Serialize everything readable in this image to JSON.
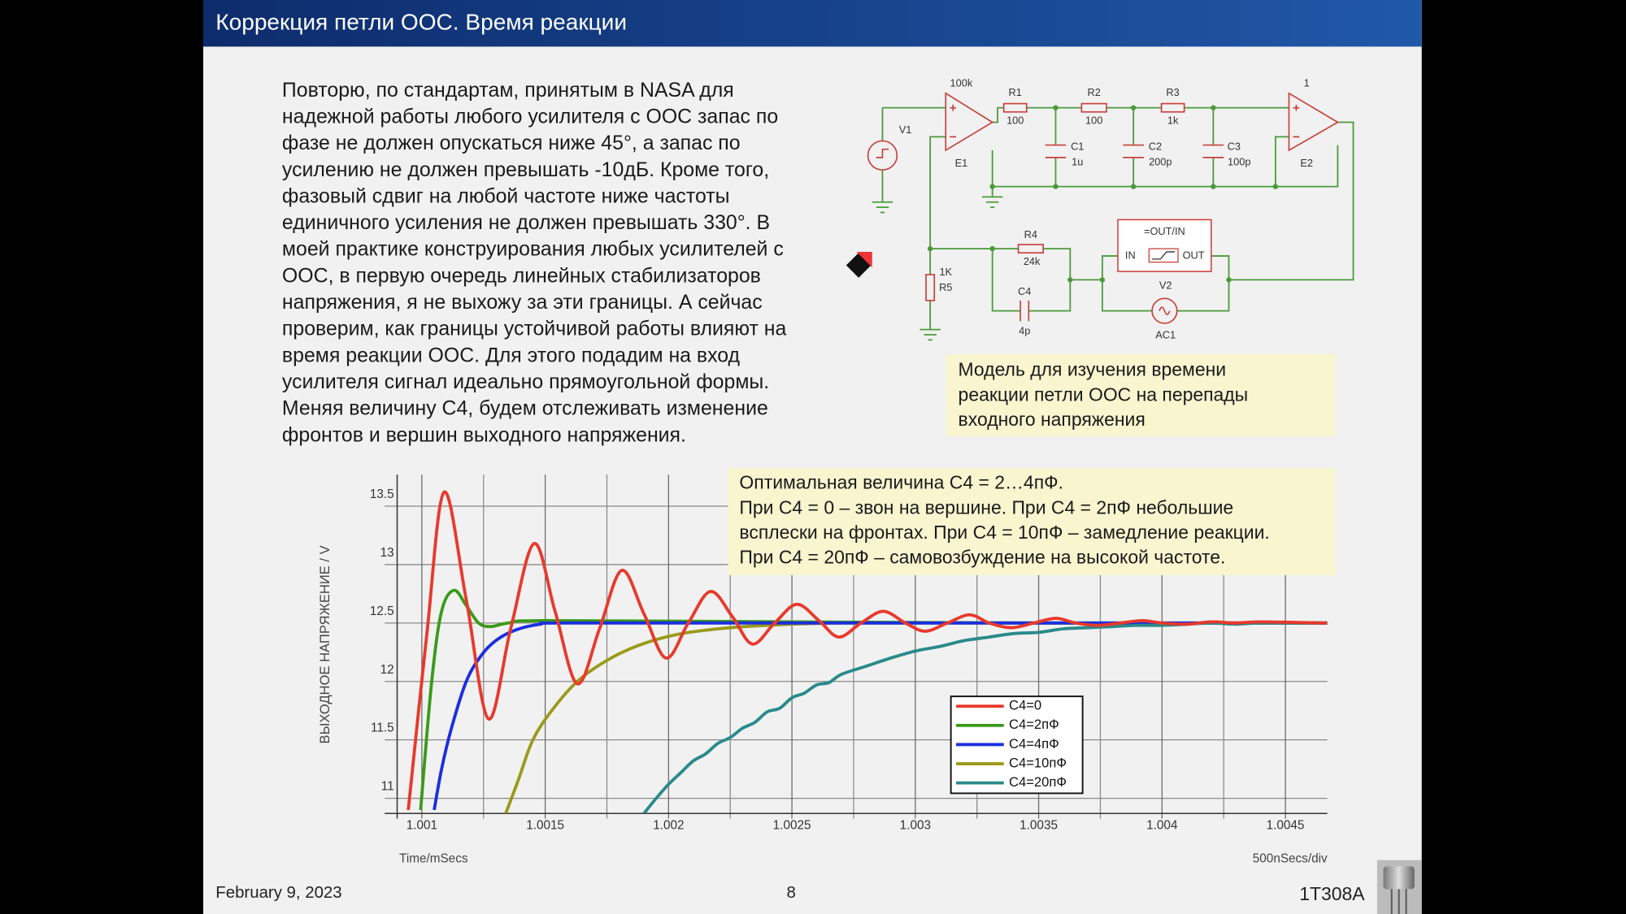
{
  "header": {
    "title": "Коррекция петли ООС. Время реакции"
  },
  "body": {
    "lines": [
      "Повторю, по стандартам, принятым в NASA для",
      "надежной работы любого усилителя с ООС запас по",
      "фазе не должен опускаться ниже 45°, а запас по",
      "усилению не должен превышать -10дБ. Кроме того,",
      "фазовый сдвиг на любой частоте ниже частоты",
      "единичного усиления не должен превышать 330°. В",
      "моей практике конструирования любых усилителей с",
      "ООС, в первую очередь линейных стабилизаторов",
      "напряжения, я не выхожу за эти границы. А сейчас",
      "проверим, как границы устойчивой работы влияют на",
      "время реакции ООС. Для этого подадим на вход",
      "усилителя сигнал идеально прямоугольной формы.",
      "Меняя величину С4, будем отслеживать изменение",
      "фронтов и вершин выходного напряжения."
    ]
  },
  "schematic": {
    "labels": [
      "100k",
      "R1",
      "100",
      "R2",
      "100",
      "R3",
      "1k",
      "1",
      "V1",
      "E1",
      "C1",
      "1u",
      "C2",
      "200p",
      "C3",
      "100p",
      "E2",
      "R4",
      "24k",
      "=OUT/IN",
      "IN",
      "OUT",
      "V2",
      "1K",
      "R5",
      "C4",
      "4p",
      "AC1"
    ]
  },
  "caption": {
    "lines": [
      "Модель для изучения времени",
      "реакции петли ООС на перепады",
      "входного напряжения"
    ]
  },
  "chart_data": {
    "type": "line",
    "annotation": [
      "Оптимальная величина С4 = 2…4пФ.",
      "При С4 = 0 – звон на вершине. При С4 = 2пФ небольшие",
      "всплески на фронтах. При С4 = 10пФ – замедление реакции.",
      "При С4 = 20пФ – самовозбуждение на высокой частоте."
    ],
    "y_label": "ВЫХОДНОЕ НАПРЯЖЕНИЕ / V",
    "x_label": "Time/mSecs",
    "x_scale_label": "500nSecs/div",
    "xlim": [
      1.0009,
      1.00467
    ],
    "ylim": [
      10.87,
      13.77
    ],
    "xticks": [
      1.001,
      1.0015,
      1.002,
      1.0025,
      1.003,
      1.0035,
      1.004,
      1.0045
    ],
    "xminorticks": [
      1.00125,
      1.00175,
      1.00225,
      1.00275,
      1.00325,
      1.00375,
      1.00425
    ],
    "yticks": [
      11,
      11.5,
      12,
      12.5,
      13,
      13.5
    ],
    "grid": true,
    "legend": "lower-center",
    "series": [
      {
        "name": "C4=0",
        "color": "#e8392c",
        "x": [
          1.000945,
          1.00102,
          1.00109,
          1.00118,
          1.00127,
          1.00136,
          1.001455,
          1.00154,
          1.00163,
          1.00172,
          1.00181,
          1.0019,
          1.00199,
          1.00208,
          1.00217,
          1.00226,
          1.00234,
          1.00243,
          1.00252,
          1.00261,
          1.00269,
          1.00278,
          1.00287,
          1.00296,
          1.00304,
          1.00313,
          1.00322,
          1.0033,
          1.00339,
          1.00348,
          1.00357,
          1.00365,
          1.00374,
          1.00383,
          1.00392,
          1.004,
          1.0041,
          1.0042,
          1.0043,
          1.0044,
          1.00467
        ],
        "values": [
          10.9,
          12.4,
          13.62,
          12.7,
          11.68,
          12.45,
          13.18,
          12.6,
          11.98,
          12.45,
          12.95,
          12.58,
          12.2,
          12.5,
          12.77,
          12.55,
          12.32,
          12.5,
          12.66,
          12.52,
          12.38,
          12.5,
          12.6,
          12.5,
          12.43,
          12.5,
          12.57,
          12.5,
          12.46,
          12.5,
          12.54,
          12.5,
          12.48,
          12.5,
          12.52,
          12.5,
          12.49,
          12.51,
          12.5,
          12.51,
          12.5
        ]
      },
      {
        "name": "C4=2пФ",
        "color": "#3a9a1a",
        "x": [
          1.000995,
          1.00104,
          1.00108,
          1.00113,
          1.00118,
          1.00123,
          1.00128,
          1.00135,
          1.0015,
          1.0025,
          1.0035,
          1.00467
        ],
        "values": [
          10.9,
          12.0,
          12.6,
          12.78,
          12.65,
          12.5,
          12.47,
          12.5,
          12.52,
          12.51,
          12.5,
          12.5
        ]
      },
      {
        "name": "C4=4пФ",
        "color": "#1a2ee0",
        "x": [
          1.00105,
          1.00108,
          1.00112,
          1.00118,
          1.00124,
          1.0013,
          1.00138,
          1.00148,
          1.00158,
          1.0025,
          1.0035,
          1.00467
        ],
        "values": [
          10.9,
          11.25,
          11.6,
          12.0,
          12.22,
          12.35,
          12.44,
          12.49,
          12.5,
          12.5,
          12.5,
          12.5
        ]
      },
      {
        "name": "C4=10пФ",
        "color": "#9a9a1a",
        "x": [
          1.00134,
          1.00139,
          1.00145,
          1.00153,
          1.00163,
          1.00175,
          1.00188,
          1.00203,
          1.0022,
          1.0024,
          1.0027,
          1.0035,
          1.00467
        ],
        "values": [
          10.87,
          11.15,
          11.5,
          11.76,
          12.0,
          12.18,
          12.31,
          12.4,
          12.45,
          12.48,
          12.5,
          12.5,
          12.5
        ]
      },
      {
        "name": "C4=20пФ",
        "color": "#2a8a8a",
        "x": [
          1.0019,
          1.00195,
          1.002,
          1.00205,
          1.0021,
          1.00215,
          1.0022,
          1.00225,
          1.0023,
          1.00235,
          1.0024,
          1.00245,
          1.0025,
          1.00255,
          1.0026,
          1.00265,
          1.0027,
          1.0028,
          1.0029,
          1.003,
          1.0031,
          1.0032,
          1.0033,
          1.0034,
          1.0035,
          1.0036,
          1.0037,
          1.0038,
          1.0039,
          1.004,
          1.0041,
          1.0042,
          1.0043,
          1.0044,
          1.00467
        ],
        "values": [
          10.87,
          11.0,
          11.12,
          11.22,
          11.32,
          11.38,
          11.47,
          11.52,
          11.6,
          11.65,
          11.74,
          11.77,
          11.86,
          11.9,
          11.97,
          11.99,
          12.06,
          12.13,
          12.2,
          12.26,
          12.3,
          12.35,
          12.38,
          12.41,
          12.42,
          12.45,
          12.46,
          12.47,
          12.48,
          12.48,
          12.49,
          12.5,
          12.49,
          12.5,
          12.5
        ]
      }
    ]
  },
  "footer": {
    "date": "February 9, 2023",
    "page": "8",
    "code": "1T308A"
  }
}
